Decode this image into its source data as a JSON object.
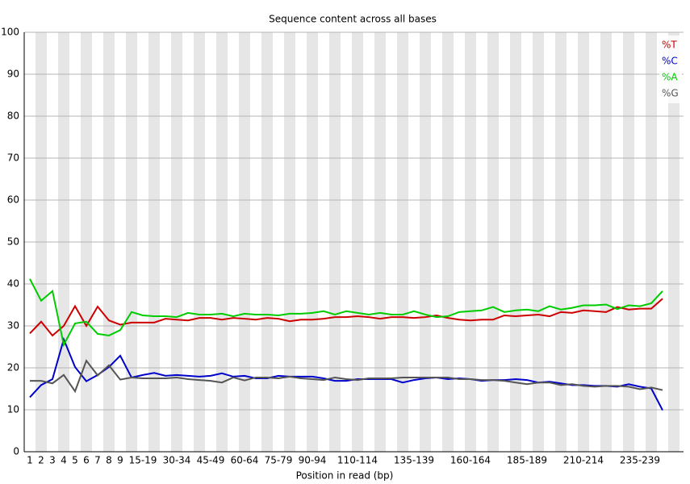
{
  "chart_data": {
    "type": "line",
    "title": "Sequence content across all bases",
    "x_label": "Position in read (bp)",
    "categories": [
      "1",
      "2",
      "3",
      "4",
      "5",
      "6",
      "7",
      "8",
      "9",
      null,
      "15-19",
      null,
      null,
      "30-34",
      null,
      null,
      "45-49",
      null,
      null,
      "60-64",
      null,
      null,
      "75-79",
      null,
      null,
      "90-94",
      null,
      null,
      null,
      "110-114",
      null,
      null,
      null,
      null,
      "135-139",
      null,
      null,
      null,
      null,
      "160-164",
      null,
      null,
      null,
      null,
      "185-189",
      null,
      null,
      null,
      null,
      "210-214",
      null,
      null,
      null,
      null,
      "235-239",
      null,
      null
    ],
    "series": [
      {
        "name": "%T",
        "color": "#cc0000",
        "values": [
          28.2,
          31,
          27.7,
          30,
          34.7,
          30,
          34.6,
          31.3,
          30.3,
          30.8,
          30.8,
          30.8,
          31.7,
          31.5,
          31.3,
          31.9,
          31.9,
          31.5,
          31.9,
          31.7,
          31.5,
          31.9,
          31.7,
          31.1,
          31.5,
          31.5,
          31.7,
          32.1,
          32.1,
          32.3,
          32.1,
          31.7,
          32.1,
          32.1,
          31.9,
          32.1,
          32.5,
          31.9,
          31.5,
          31.3,
          31.5,
          31.5,
          32.5,
          32.3,
          32.5,
          32.7,
          32.3,
          33.3,
          33.1,
          33.7,
          33.5,
          33.3,
          34.5,
          33.9,
          34.1,
          34.1,
          36.5
        ]
      },
      {
        "name": "%C",
        "color": "#0000cc",
        "values": [
          13,
          15.9,
          17.3,
          26.8,
          20.2,
          16.8,
          18.3,
          20.2,
          22.9,
          17.7,
          18.3,
          18.8,
          18.1,
          18.3,
          18.1,
          17.9,
          18.1,
          18.7,
          17.9,
          18.1,
          17.5,
          17.5,
          18.1,
          17.9,
          17.9,
          17.9,
          17.5,
          16.9,
          16.9,
          17.3,
          17.3,
          17.3,
          17.3,
          16.5,
          17.1,
          17.5,
          17.7,
          17.3,
          17.5,
          17.3,
          16.9,
          17.1,
          17.1,
          17.3,
          17.1,
          16.5,
          16.7,
          16.3,
          15.9,
          15.9,
          15.7,
          15.7,
          15.5,
          16.1,
          15.5,
          15.1,
          9.9
        ]
      },
      {
        "name": "%A",
        "color": "#00cc00",
        "values": [
          41.2,
          36,
          38.3,
          25.5,
          30.6,
          31,
          28.1,
          27.7,
          29,
          33.3,
          32.5,
          32.3,
          32.3,
          32.1,
          33.1,
          32.7,
          32.7,
          32.9,
          32.3,
          32.9,
          32.7,
          32.7,
          32.5,
          32.9,
          32.9,
          33.1,
          33.5,
          32.7,
          33.5,
          33.1,
          32.7,
          33.1,
          32.7,
          32.7,
          33.5,
          32.7,
          32.1,
          32.3,
          33.3,
          33.5,
          33.7,
          34.5,
          33.3,
          33.7,
          33.9,
          33.5,
          34.7,
          33.9,
          34.3,
          34.9,
          34.9,
          35.1,
          34,
          34.9,
          34.7,
          35.4,
          38.3
        ]
      },
      {
        "name": "%G",
        "color": "#555555",
        "values": [
          16.9,
          16.9,
          16.3,
          18.3,
          14.4,
          21.7,
          18.2,
          20.6,
          17.2,
          17.7,
          17.5,
          17.5,
          17.5,
          17.7,
          17.3,
          17.1,
          16.9,
          16.5,
          17.7,
          17,
          17.7,
          17.7,
          17.5,
          17.9,
          17.5,
          17.3,
          17.1,
          17.7,
          17.3,
          17.1,
          17.5,
          17.5,
          17.5,
          17.7,
          17.7,
          17.7,
          17.7,
          17.7,
          17.3,
          17.3,
          17.1,
          17.1,
          16.9,
          16.5,
          16.1,
          16.5,
          16.5,
          15.9,
          16.1,
          15.7,
          15.5,
          15.7,
          15.7,
          15.5,
          14.9,
          15.3,
          14.7
        ]
      }
    ],
    "ylim": [
      0,
      100
    ],
    "yticks": [
      0,
      10,
      20,
      30,
      40,
      50,
      60,
      70,
      80,
      90,
      100
    ],
    "grid": true,
    "legend": "top-right"
  }
}
